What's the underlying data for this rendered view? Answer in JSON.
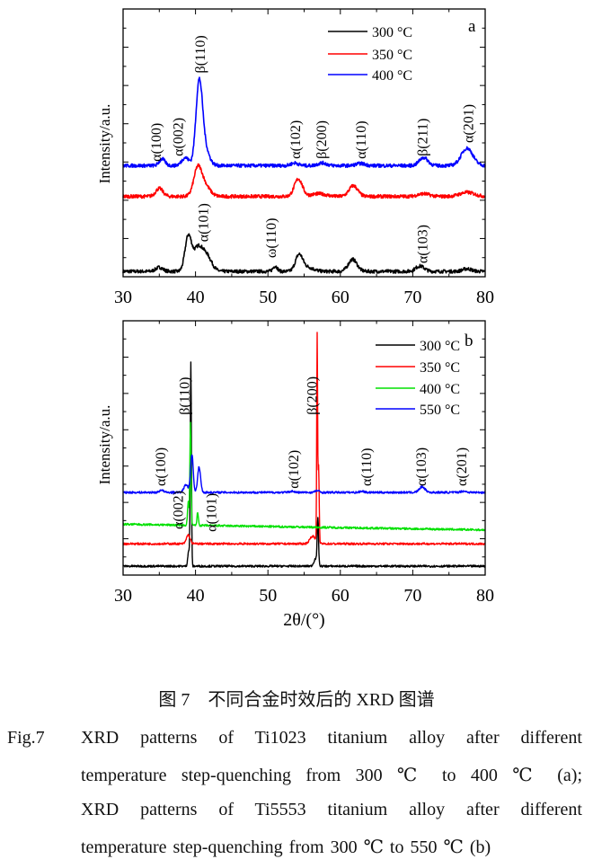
{
  "colors": {
    "black": "#000000",
    "red": "#ff0000",
    "blue": "#0000ff",
    "green": "#00e000"
  },
  "chart_data": [
    {
      "type": "line",
      "panel_label": "a",
      "ylabel": "Intensity/a.u.",
      "xlabel": "",
      "xlim": [
        30,
        80
      ],
      "ylim": [
        0,
        100
      ],
      "xticks": [
        "30",
        "40",
        "50",
        "60",
        "70",
        "80"
      ],
      "legend_position": "top-right",
      "series": [
        {
          "name": "300 °C",
          "color": "#000000",
          "baseline": 2,
          "peaks": [
            [
              35,
              1.5,
              0.5
            ],
            [
              39,
              13,
              0.45
            ],
            [
              40.3,
              8,
              0.6
            ],
            [
              41.5,
              6,
              0.7
            ],
            [
              51,
              2,
              0.3
            ],
            [
              54.3,
              6,
              0.5
            ],
            [
              55.5,
              1.5,
              0.8
            ],
            [
              61.7,
              4.5,
              0.6
            ],
            [
              71,
              2,
              0.6
            ],
            [
              77.5,
              1,
              0.6
            ]
          ]
        },
        {
          "name": "350 °C",
          "color": "#ff0000",
          "baseline": 30,
          "peaks": [
            [
              35,
              3,
              0.5
            ],
            [
              40.3,
              10,
              0.55
            ],
            [
              41.3,
              4,
              0.7
            ],
            [
              54.2,
              6.5,
              0.55
            ],
            [
              57,
              1,
              1
            ],
            [
              61.8,
              4,
              0.6
            ],
            [
              71.5,
              1,
              0.8
            ],
            [
              77.5,
              1.5,
              1
            ]
          ]
        },
        {
          "name": "400 °C",
          "color": "#0000ff",
          "baseline": 41.5,
          "peaks": [
            [
              35.4,
              2.5,
              0.4
            ],
            [
              38.6,
              3,
              0.5
            ],
            [
              40.5,
              30,
              0.45
            ],
            [
              41.3,
              6,
              0.6
            ],
            [
              53.7,
              1,
              0.5
            ],
            [
              57.5,
              1,
              0.6
            ],
            [
              62.8,
              0.8,
              0.6
            ],
            [
              71.5,
              3,
              0.6
            ],
            [
              77.5,
              6.5,
              0.8
            ]
          ]
        }
      ],
      "annotations": [
        {
          "text": "α(100)",
          "x": 34.6,
          "y": 43
        },
        {
          "text": "α(002)",
          "x": 37.6,
          "y": 45
        },
        {
          "text": "β(110)",
          "x": 40.7,
          "y": 76
        },
        {
          "text": "α(102)",
          "x": 53.8,
          "y": 44
        },
        {
          "text": "β(200)",
          "x": 57.4,
          "y": 44
        },
        {
          "text": "α(110)",
          "x": 62.9,
          "y": 44
        },
        {
          "text": "β(211)",
          "x": 71.4,
          "y": 45
        },
        {
          "text": "α(201)",
          "x": 77.7,
          "y": 50
        },
        {
          "text": "α(101)",
          "x": 41.1,
          "y": 13
        },
        {
          "text": "ω(110)",
          "x": 50.5,
          "y": 7
        },
        {
          "text": "α(103)",
          "x": 71.4,
          "y": 5
        }
      ]
    },
    {
      "type": "line",
      "panel_label": "b",
      "ylabel": "Intensity/a.u.",
      "xlabel": "2θ/(°)",
      "xlim": [
        30,
        80
      ],
      "ylim": [
        0,
        100
      ],
      "xticks": [
        "30",
        "40",
        "50",
        "60",
        "70",
        "80"
      ],
      "legend_position": "top-right",
      "series": [
        {
          "name": "300 °C",
          "color": "#000000",
          "baseline": 3.5,
          "peaks": [
            [
              39.05,
              6,
              0.12
            ],
            [
              39.35,
              80,
              0.08
            ],
            [
              56.6,
              3,
              0.25
            ],
            [
              56.9,
              18,
              0.09
            ]
          ]
        },
        {
          "name": "350 °C",
          "color": "#ff0000",
          "baseline": 12.3,
          "peaks": [
            [
              39.0,
              3.5,
              0.25
            ],
            [
              56.2,
              3,
              0.4
            ],
            [
              56.8,
              81,
              0.06
            ],
            [
              57.0,
              30,
              0.08
            ]
          ]
        },
        {
          "name": "400 °C",
          "color": "#00e000",
          "baseline": 20,
          "peaks": [
            [
              39.0,
              9,
              0.1
            ],
            [
              39.3,
              40,
              0.08
            ],
            [
              40.3,
              5,
              0.1
            ]
          ]
        },
        {
          "name": "550 °C",
          "color": "#0000ff",
          "baseline": 32.5,
          "peaks": [
            [
              35.3,
              1,
              0.25
            ],
            [
              38.7,
              3,
              0.3
            ],
            [
              39.5,
              15,
              0.18
            ],
            [
              40.5,
              10,
              0.2
            ],
            [
              53.3,
              0.5,
              0.3
            ],
            [
              56.8,
              0.7,
              0.3
            ],
            [
              63,
              0.5,
              0.3
            ],
            [
              71.3,
              2.2,
              0.4
            ],
            [
              77,
              0.5,
              0.4
            ]
          ]
        }
      ],
      "annotations": [
        {
          "text": "α(100)",
          "x": 35.2,
          "y": 35
        },
        {
          "text": "β(110)",
          "x": 38.5,
          "y": 63
        },
        {
          "text": "α(002)",
          "x": 37.6,
          "y": 18
        },
        {
          "text": "α(101)",
          "x": 42.2,
          "y": 17
        },
        {
          "text": "β(200)",
          "x": 56.1,
          "y": 63
        },
        {
          "text": "α(102)",
          "x": 53.6,
          "y": 34
        },
        {
          "text": "α(110)",
          "x": 63.6,
          "y": 35
        },
        {
          "text": "α(103)",
          "x": 71.2,
          "y": 35
        },
        {
          "text": "α(201)",
          "x": 76.8,
          "y": 35
        }
      ]
    }
  ],
  "caption": {
    "cn": "图 7　不同合金时效后的 XRD 图谱",
    "label": "Fig.7",
    "lines": [
      "XRD patterns of Ti1023 titanium alloy after different",
      "temperature step-quenching from 300 ℃ to 400 ℃ (a);",
      "XRD patterns of Ti5553 titanium alloy after different",
      "temperature step-quenching from 300 ℃ to 550 ℃ (b)"
    ]
  }
}
